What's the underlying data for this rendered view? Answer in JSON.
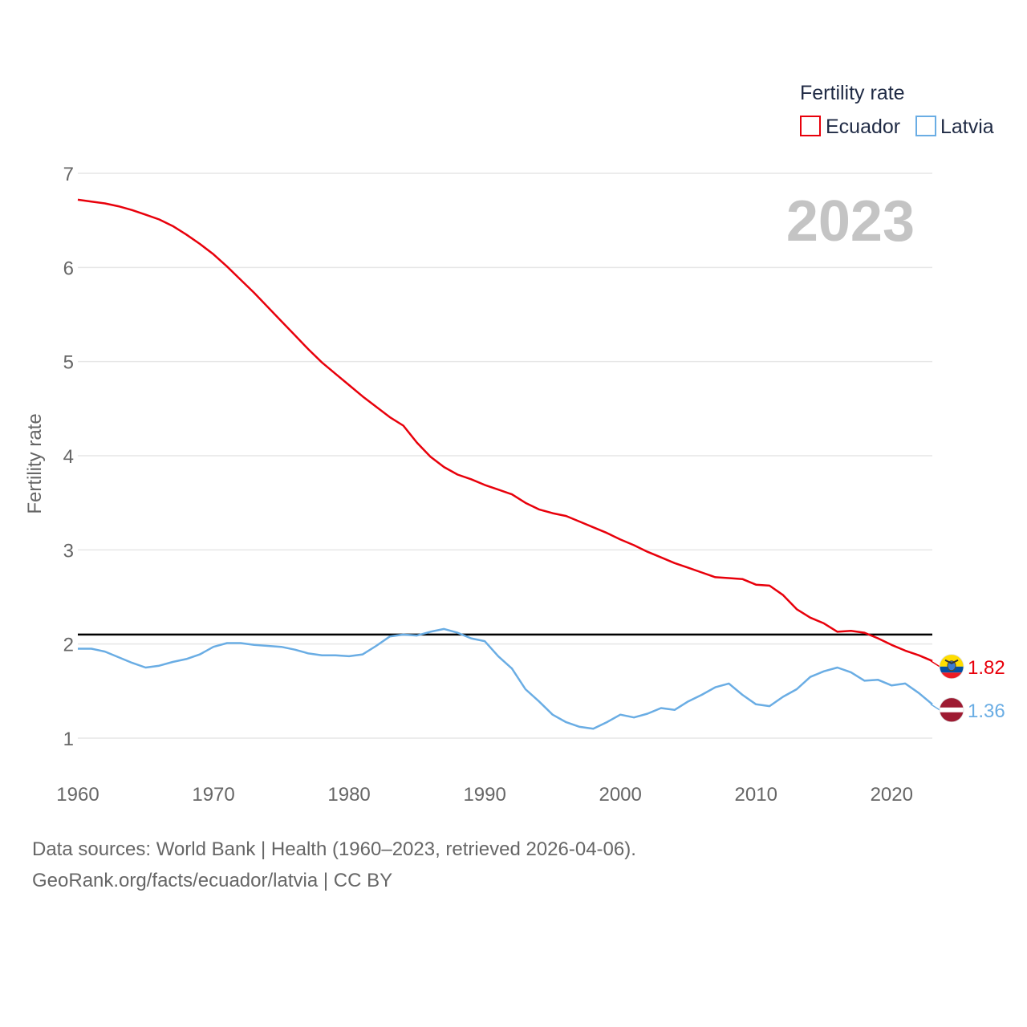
{
  "chart_data": {
    "type": "line",
    "title": "Fertility rate",
    "ylabel": "Fertility rate",
    "xlabel": "",
    "current_year_label": "2023",
    "xlim": [
      1960,
      2023
    ],
    "ylim": [
      1,
      7
    ],
    "x_ticks": [
      1960,
      1970,
      1980,
      1990,
      2000,
      2010,
      2020
    ],
    "y_ticks": [
      1,
      2,
      3,
      4,
      5,
      6,
      7
    ],
    "reference_line": {
      "value": 2.1,
      "color": "#000000"
    },
    "x": [
      1960,
      1961,
      1962,
      1963,
      1964,
      1965,
      1966,
      1967,
      1968,
      1969,
      1970,
      1971,
      1972,
      1973,
      1974,
      1975,
      1976,
      1977,
      1978,
      1979,
      1980,
      1981,
      1982,
      1983,
      1984,
      1985,
      1986,
      1987,
      1988,
      1989,
      1990,
      1991,
      1992,
      1993,
      1994,
      1995,
      1996,
      1997,
      1998,
      1999,
      2000,
      2001,
      2002,
      2003,
      2004,
      2005,
      2006,
      2007,
      2008,
      2009,
      2010,
      2011,
      2012,
      2013,
      2014,
      2015,
      2016,
      2017,
      2018,
      2019,
      2020,
      2021,
      2022,
      2023
    ],
    "series": [
      {
        "name": "Ecuador",
        "color": "#e8000b",
        "end_label": "1.82",
        "flag": "ecuador-flag",
        "values": [
          6.72,
          6.7,
          6.68,
          6.65,
          6.61,
          6.56,
          6.51,
          6.44,
          6.35,
          6.25,
          6.14,
          6.01,
          5.87,
          5.73,
          5.58,
          5.43,
          5.28,
          5.13,
          4.99,
          4.87,
          4.75,
          4.63,
          4.52,
          4.41,
          4.32,
          4.14,
          3.99,
          3.88,
          3.8,
          3.75,
          3.69,
          3.64,
          3.59,
          3.5,
          3.43,
          3.39,
          3.36,
          3.3,
          3.24,
          3.18,
          3.11,
          3.05,
          2.98,
          2.92,
          2.86,
          2.81,
          2.76,
          2.71,
          2.7,
          2.69,
          2.63,
          2.62,
          2.52,
          2.37,
          2.28,
          2.22,
          2.13,
          2.14,
          2.12,
          2.06,
          1.99,
          1.93,
          1.88,
          1.82
        ]
      },
      {
        "name": "Latvia",
        "color": "#6aade4",
        "end_label": "1.36",
        "flag": "latvia-flag",
        "values": [
          1.95,
          1.95,
          1.92,
          1.86,
          1.8,
          1.75,
          1.77,
          1.81,
          1.84,
          1.89,
          1.97,
          2.01,
          2.01,
          1.99,
          1.98,
          1.97,
          1.94,
          1.9,
          1.88,
          1.88,
          1.87,
          1.89,
          1.98,
          2.08,
          2.1,
          2.09,
          2.13,
          2.16,
          2.12,
          2.06,
          2.03,
          1.87,
          1.74,
          1.52,
          1.39,
          1.25,
          1.17,
          1.12,
          1.1,
          1.17,
          1.25,
          1.22,
          1.26,
          1.32,
          1.3,
          1.39,
          1.46,
          1.54,
          1.58,
          1.46,
          1.36,
          1.34,
          1.44,
          1.52,
          1.65,
          1.71,
          1.75,
          1.7,
          1.61,
          1.62,
          1.56,
          1.58,
          1.48,
          1.36
        ]
      }
    ],
    "legend": {
      "title": "Fertility rate",
      "placement": "top-right"
    }
  },
  "footer": {
    "source_line": "Data sources: World Bank | Health (1960–2023, retrieved 2026-04-06).",
    "credit_line": "GeoRank.org/facts/ecuador/latvia | CC BY"
  }
}
